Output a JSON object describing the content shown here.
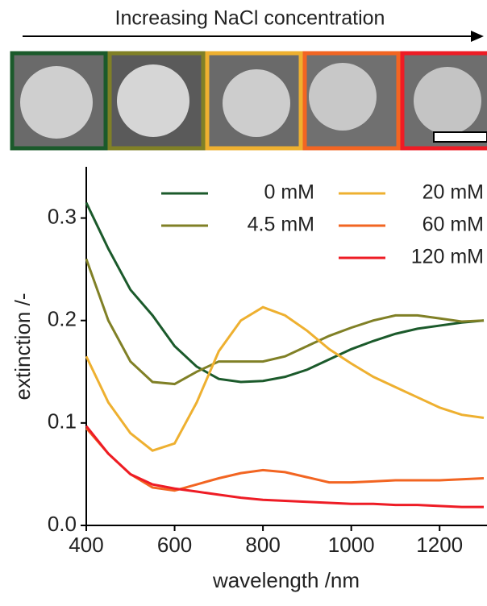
{
  "header_text": "Increasing NaCl concentration",
  "chart_data": {
    "type": "line",
    "x_label": "wavelength /nm",
    "y_label": "extinction /-",
    "x": [
      400,
      450,
      500,
      550,
      600,
      650,
      700,
      750,
      800,
      850,
      900,
      950,
      1000,
      1050,
      1100,
      1150,
      1200,
      1250,
      1300
    ],
    "series": [
      {
        "name": "0 mM",
        "color": "#1b5a2b",
        "values": [
          0.315,
          0.27,
          0.23,
          0.205,
          0.175,
          0.155,
          0.143,
          0.14,
          0.141,
          0.145,
          0.152,
          0.162,
          0.172,
          0.18,
          0.187,
          0.192,
          0.195,
          0.198,
          0.2
        ]
      },
      {
        "name": "4.5 mM",
        "color": "#808026",
        "values": [
          0.26,
          0.2,
          0.16,
          0.14,
          0.138,
          0.15,
          0.16,
          0.16,
          0.16,
          0.165,
          0.175,
          0.185,
          0.193,
          0.2,
          0.205,
          0.205,
          0.202,
          0.199,
          0.2
        ]
      },
      {
        "name": "20 mM",
        "color": "#eeb030",
        "values": [
          0.165,
          0.12,
          0.09,
          0.073,
          0.08,
          0.12,
          0.17,
          0.2,
          0.213,
          0.205,
          0.19,
          0.172,
          0.158,
          0.145,
          0.135,
          0.125,
          0.115,
          0.108,
          0.105
        ]
      },
      {
        "name": "60 mM",
        "color": "#f26522",
        "values": [
          0.095,
          0.07,
          0.05,
          0.037,
          0.034,
          0.04,
          0.046,
          0.051,
          0.054,
          0.052,
          0.047,
          0.042,
          0.042,
          0.043,
          0.044,
          0.044,
          0.044,
          0.045,
          0.046
        ]
      },
      {
        "name": "120 mM",
        "color": "#ee1c25",
        "values": [
          0.097,
          0.07,
          0.05,
          0.04,
          0.036,
          0.033,
          0.03,
          0.027,
          0.025,
          0.024,
          0.023,
          0.022,
          0.021,
          0.021,
          0.02,
          0.02,
          0.019,
          0.018,
          0.018
        ]
      }
    ],
    "xlim": [
      400,
      1300
    ],
    "ylim": [
      0,
      0.35
    ],
    "xticks": [
      400,
      600,
      800,
      1000,
      1200
    ],
    "yticks": [
      {
        "value": 0,
        "label": "0.0"
      },
      0.1,
      0.2,
      0.3
    ],
    "grid": false
  }
}
